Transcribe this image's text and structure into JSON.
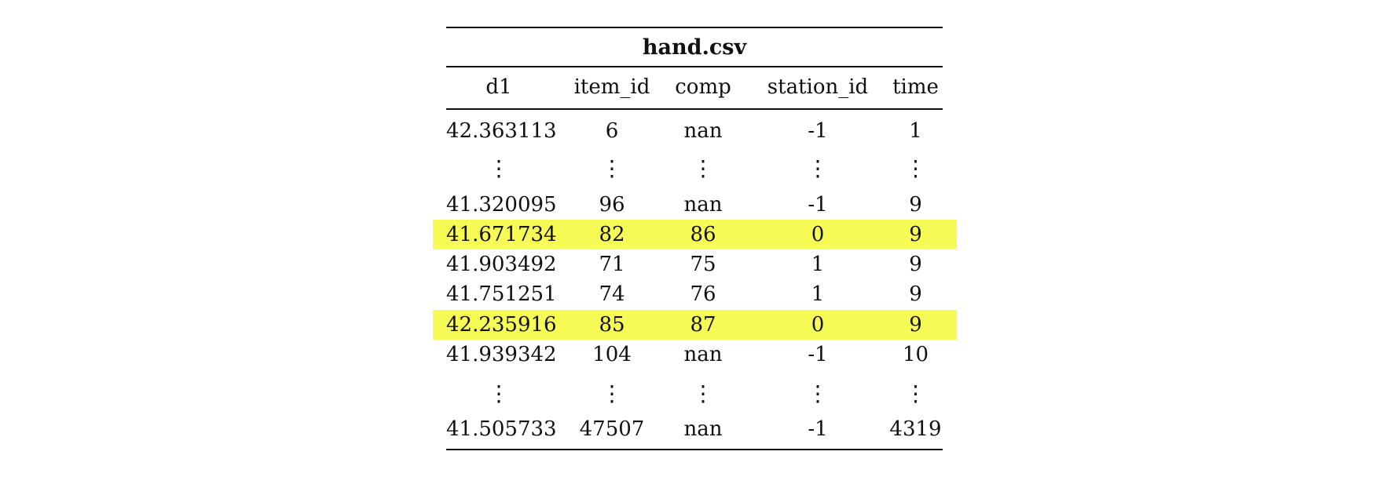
{
  "table": {
    "title": "hand.csv",
    "columns": [
      "d1",
      "item_id",
      "comp",
      "station_id",
      "time"
    ],
    "rows": [
      {
        "cells": [
          "42.363113",
          "6",
          "nan",
          "-1",
          "1"
        ],
        "highlighted": false
      },
      {
        "cells": [
          "41.320095",
          "96",
          "nan",
          "-1",
          "9"
        ],
        "highlighted": false
      },
      {
        "cells": [
          "41.671734",
          "82",
          "86",
          "0",
          "9"
        ],
        "highlighted": true
      },
      {
        "cells": [
          "41.903492",
          "71",
          "75",
          "1",
          "9"
        ],
        "highlighted": false
      },
      {
        "cells": [
          "41.751251",
          "74",
          "76",
          "1",
          "9"
        ],
        "highlighted": false
      },
      {
        "cells": [
          "42.235916",
          "85",
          "87",
          "0",
          "9"
        ],
        "highlighted": true
      },
      {
        "cells": [
          "41.939342",
          "104",
          "nan",
          "-1",
          "10"
        ],
        "highlighted": false
      },
      {
        "cells": [
          "41.505733",
          "47507",
          "nan",
          "-1",
          "4319"
        ],
        "highlighted": false
      }
    ],
    "ellipsis": "⋮",
    "highlight_color": "#f6fb55"
  }
}
